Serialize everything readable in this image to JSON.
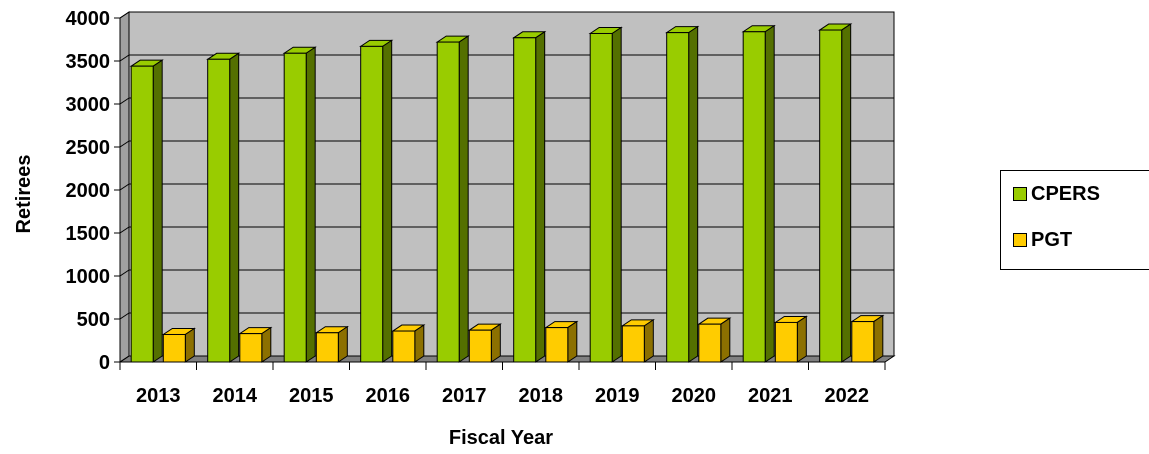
{
  "chart_data": {
    "type": "bar",
    "title": "",
    "xlabel": "Fiscal Year",
    "ylabel": "Retirees",
    "categories": [
      "2013",
      "2014",
      "2015",
      "2016",
      "2017",
      "2018",
      "2019",
      "2020",
      "2021",
      "2022"
    ],
    "series": [
      {
        "name": "CPERS",
        "color": "#99CC00",
        "values": [
          3440,
          3520,
          3590,
          3670,
          3720,
          3770,
          3820,
          3830,
          3840,
          3860
        ]
      },
      {
        "name": "PGT",
        "color": "#FFCC00",
        "values": [
          320,
          330,
          340,
          360,
          370,
          400,
          420,
          440,
          460,
          470
        ]
      }
    ],
    "ylim": [
      0,
      4000
    ],
    "yticks": [
      0,
      500,
      1000,
      1500,
      2000,
      2500,
      3000,
      3500,
      4000
    ],
    "grid": true,
    "plot_background": "#C0C0C0",
    "legend_position": "right"
  }
}
